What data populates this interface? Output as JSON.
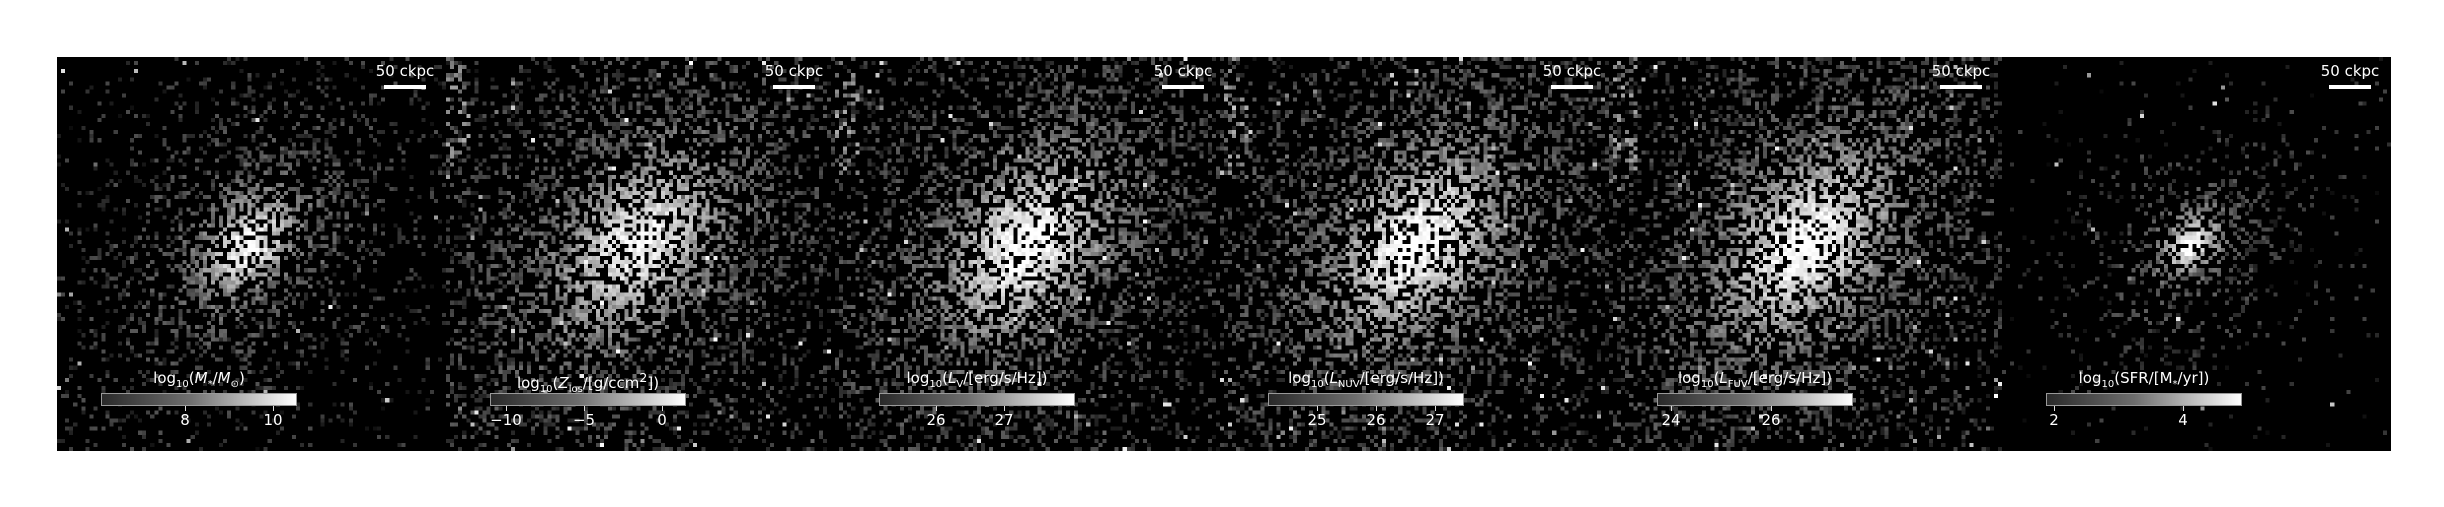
{
  "figure": {
    "panels": [
      {
        "id": "stellar-mass",
        "scalebar": "50 ckpc",
        "colorbar": {
          "title_html": "log<sub>10</sub>(<i>M</i><sub>*</sub>/<i>M</i><sub>⊙</sub>)",
          "ticks": [
            {
              "label": "8",
              "frac": 0.43
            },
            {
              "label": "10",
              "frac": 0.88
            }
          ]
        },
        "image": {
          "spread": 0.55,
          "core": 0.9,
          "noise": 0.15
        }
      },
      {
        "id": "metallicity",
        "scalebar": "50 ckpc",
        "colorbar": {
          "title_html": "log<sub>10</sub>(<i>Z</i><sub>los</sub>/[g/ccm<sup>2</sup>])",
          "ticks": [
            {
              "label": "−10",
              "frac": 0.08
            },
            {
              "label": "−5",
              "frac": 0.48
            },
            {
              "label": "0",
              "frac": 0.88
            }
          ]
        },
        "image": {
          "spread": 1.0,
          "core": 0.85,
          "noise": 0.35
        }
      },
      {
        "id": "lum-v",
        "scalebar": "50 ckpc",
        "colorbar": {
          "title_html": "log<sub>10</sub>(<i>L</i><sub>V</sub>/[erg/s/Hz])",
          "ticks": [
            {
              "label": "26",
              "frac": 0.29
            },
            {
              "label": "27",
              "frac": 0.64
            }
          ]
        },
        "image": {
          "spread": 1.0,
          "core": 0.95,
          "noise": 0.4
        }
      },
      {
        "id": "lum-nuv",
        "scalebar": "50 ckpc",
        "colorbar": {
          "title_html": "log<sub>10</sub>(<i>L</i><sub>NUV</sub>/[erg/s/Hz])",
          "ticks": [
            {
              "label": "25",
              "frac": 0.25
            },
            {
              "label": "26",
              "frac": 0.55
            },
            {
              "label": "27",
              "frac": 0.85
            }
          ]
        },
        "image": {
          "spread": 1.05,
          "core": 0.95,
          "noise": 0.5
        }
      },
      {
        "id": "lum-fuv",
        "scalebar": "50 ckpc",
        "colorbar": {
          "title_html": "log<sub>10</sub>(<i>L</i><sub>FUV</sub>/[erg/s/Hz])",
          "ticks": [
            {
              "label": "24",
              "frac": 0.07
            },
            {
              "label": "26",
              "frac": 0.58
            }
          ]
        },
        "image": {
          "spread": 1.05,
          "core": 0.95,
          "noise": 0.5
        }
      },
      {
        "id": "sfr",
        "scalebar": "50 ckpc",
        "colorbar": {
          "title_html": "log<sub>10</sub>(SFR/[M<sub>*</sub>/yr])",
          "ticks": [
            {
              "label": "2",
              "frac": 0.04
            },
            {
              "label": "4",
              "frac": 0.7
            }
          ]
        },
        "image": {
          "spread": 0.3,
          "core": 0.95,
          "noise": 0.05
        }
      }
    ]
  }
}
